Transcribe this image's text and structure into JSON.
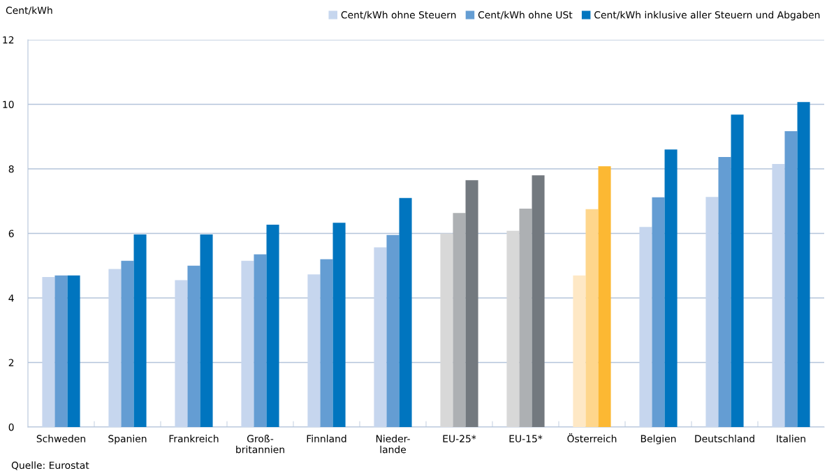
{
  "chart_data": {
    "type": "bar",
    "ylabel": "Cent/kWh",
    "categories": [
      "Schweden",
      "Spanien",
      "Frankreich",
      "Groß-\nbritannien",
      "Finnland",
      "Nieder-\nlande",
      "EU-25*",
      "EU-15*",
      "Österreich",
      "Belgien",
      "Deutschland",
      "Italien"
    ],
    "series": [
      {
        "name": "Cent/kWh ohne Steuern",
        "color": "#c6d6ee",
        "colors": [
          "#c6d6ee",
          "#c6d6ee",
          "#c6d6ee",
          "#c6d6ee",
          "#c6d6ee",
          "#c6d6ee",
          "#d8d8d8",
          "#d8d8d8",
          "#fee8c5",
          "#c6d6ee",
          "#c6d6ee",
          "#c6d6ee"
        ],
        "values": [
          4.65,
          4.9,
          4.55,
          5.15,
          4.73,
          5.57,
          6.0,
          6.08,
          4.7,
          6.2,
          7.13,
          8.15
        ]
      },
      {
        "name": "Cent/kWh ohne USt",
        "color": "#649dd3",
        "colors": [
          "#649dd3",
          "#649dd3",
          "#649dd3",
          "#649dd3",
          "#649dd3",
          "#649dd3",
          "#adb0b3",
          "#adb0b3",
          "#fed68c",
          "#649dd3",
          "#649dd3",
          "#649dd3"
        ],
        "values": [
          4.7,
          5.15,
          5.0,
          5.35,
          5.2,
          5.95,
          6.63,
          6.77,
          6.75,
          7.12,
          8.37,
          9.17
        ]
      },
      {
        "name": "Cent/kWh inklusive aller Steuern und Abgaben",
        "color": "#0075bf",
        "colors": [
          "#0075bf",
          "#0075bf",
          "#0075bf",
          "#0075bf",
          "#0075bf",
          "#0075bf",
          "#73797f",
          "#73797f",
          "#fcb833",
          "#0075bf",
          "#0075bf",
          "#0075bf"
        ],
        "values": [
          4.7,
          5.97,
          5.97,
          6.27,
          6.33,
          7.1,
          7.65,
          7.8,
          8.08,
          8.6,
          9.68,
          10.07
        ]
      }
    ],
    "ylim": [
      0,
      12
    ],
    "yticks": [
      0,
      2,
      4,
      6,
      8,
      10,
      12
    ],
    "grid": "y",
    "legend": "top right",
    "annotations": [
      "Quelle: Eurostat"
    ]
  }
}
